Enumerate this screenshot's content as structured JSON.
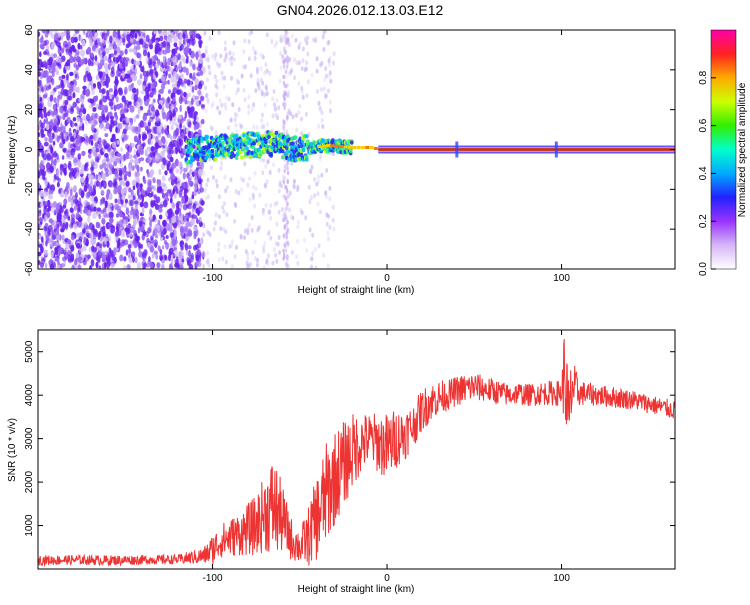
{
  "title": "GN04.2026.012.13.03.E12",
  "colors": {
    "snr_line": "#ee3333",
    "track_core": "#ff1111",
    "noise": "#6a22ee",
    "noise_light": "#cdb8f4",
    "colorbar_stops": [
      "#ffffff",
      "#d6b6f6",
      "#9933ff",
      "#2222ff",
      "#00aaff",
      "#00ffcc",
      "#33ee00",
      "#ccff00",
      "#ffaa00",
      "#ff2222",
      "#ff00aa"
    ]
  },
  "chart_data": [
    {
      "type": "heatmap",
      "title": "",
      "xlabel": "Height of straight line (km)",
      "ylabel": "Frequency (Hz)",
      "xlim": [
        -200,
        165
      ],
      "ylim": [
        -60,
        60
      ],
      "xticks": [
        -100,
        0,
        100
      ],
      "yticks": [
        -60,
        -40,
        -20,
        0,
        20,
        40,
        60
      ],
      "xtick_labels": [
        "-100",
        "0",
        "100"
      ],
      "ytick_labels": [
        "-60",
        "-40",
        "-20",
        "0",
        "20",
        "40",
        "60"
      ],
      "noise_region_x": [
        -200,
        -105
      ],
      "track": {
        "x": [
          -115,
          -100,
          -80,
          -65,
          -55,
          -45,
          -35,
          -20,
          -10,
          0,
          10,
          40,
          100,
          165
        ],
        "frequency": [
          -1,
          1,
          2,
          3,
          0,
          1,
          2,
          1,
          1,
          -1,
          0,
          0,
          0,
          0
        ]
      },
      "colorbar": {
        "label": "Normalized spectral amplitude",
        "range": [
          0,
          1
        ],
        "ticks": [
          0.0,
          0.2,
          0.4,
          0.6,
          0.8
        ],
        "tick_labels": [
          "0.0",
          "0.2",
          "0.4",
          "0.6",
          "0.8"
        ]
      }
    },
    {
      "type": "line",
      "title": "",
      "xlabel": "Height of straight line (km)",
      "ylabel": "SNR (10 * v/v)",
      "xlim": [
        -200,
        165
      ],
      "ylim": [
        0,
        5500
      ],
      "xticks": [
        -100,
        0,
        100
      ],
      "yticks": [
        1000,
        2000,
        3000,
        4000,
        5000
      ],
      "xtick_labels": [
        "-100",
        "0",
        "100"
      ],
      "ytick_labels": [
        "1000",
        "2000",
        "3000",
        "4000",
        "5000"
      ],
      "series": [
        {
          "name": "SNR",
          "x": [
            -200,
            -180,
            -160,
            -140,
            -120,
            -105,
            -100,
            -95,
            -90,
            -85,
            -80,
            -75,
            -70,
            -65,
            -60,
            -55,
            -50,
            -45,
            -40,
            -35,
            -30,
            -25,
            -20,
            -15,
            -10,
            -5,
            0,
            5,
            10,
            15,
            20,
            25,
            30,
            35,
            40,
            45,
            50,
            55,
            60,
            65,
            70,
            75,
            80,
            90,
            100,
            102,
            104,
            106,
            110,
            120,
            130,
            140,
            150,
            160,
            165
          ],
          "y": [
            200,
            210,
            200,
            210,
            220,
            300,
            450,
            650,
            720,
            800,
            900,
            1000,
            1300,
            1450,
            1150,
            700,
            500,
            750,
            1200,
            1700,
            2100,
            2400,
            2700,
            2900,
            3000,
            2900,
            2800,
            3000,
            3100,
            3300,
            3650,
            3850,
            3950,
            4000,
            4100,
            4150,
            4200,
            4150,
            4100,
            4050,
            4000,
            4050,
            4000,
            4050,
            4050,
            4600,
            3200,
            4200,
            4050,
            4000,
            3950,
            3900,
            3800,
            3700,
            3650
          ],
          "noise_amplitude": [
            120,
            110,
            120,
            110,
            110,
            200,
            350,
            400,
            450,
            500,
            600,
            700,
            900,
            1200,
            800,
            500,
            400,
            700,
            1000,
            1200,
            1100,
            1000,
            900,
            700,
            600,
            700,
            800,
            700,
            600,
            500,
            500,
            450,
            400,
            350,
            350,
            350,
            350,
            300,
            300,
            280,
            260,
            260,
            260,
            280,
            300,
            1300,
            1300,
            700,
            300,
            250,
            250,
            230,
            220,
            220,
            220
          ]
        }
      ]
    }
  ]
}
